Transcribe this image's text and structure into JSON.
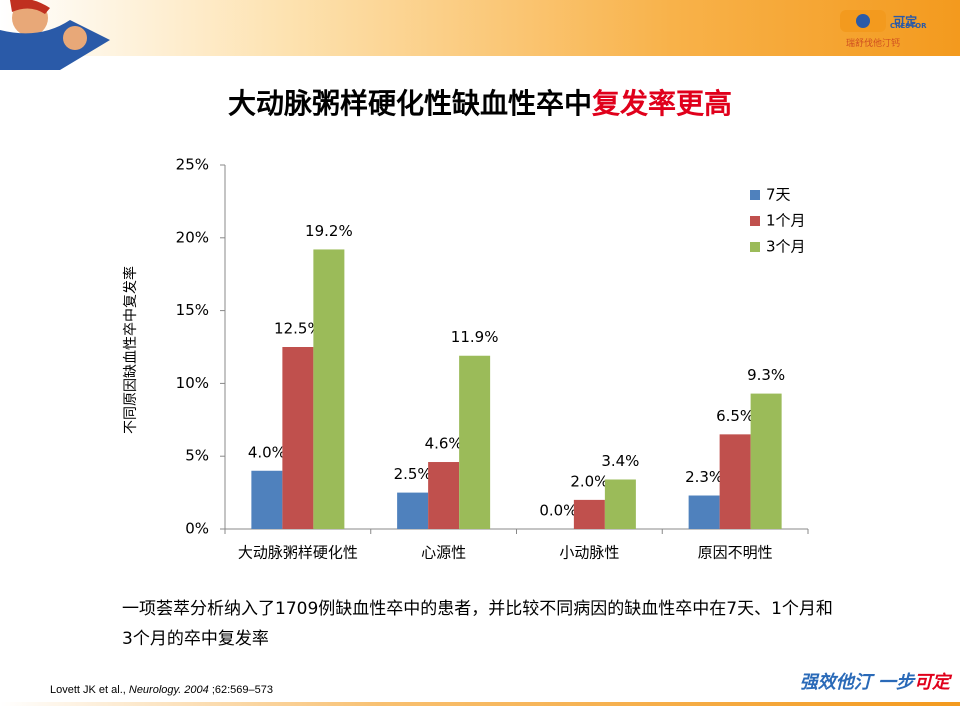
{
  "title_parts": [
    "大动脉粥样硬化性缺血性卒中",
    "复发率更高"
  ],
  "logo": {
    "brand": "可定",
    "brand_en": "CRESTOR",
    "slogan": "瑞舒伐他汀钙"
  },
  "chart_data": {
    "type": "bar",
    "y_axis_label": "不同原因缺血性卒中复发率",
    "categories": [
      "大动脉粥样硬化性",
      "心源性",
      "小动脉性",
      "原因不明性"
    ],
    "series": [
      {
        "name": "7天",
        "color": "#4f81bd",
        "values": [
          4.0,
          2.5,
          0.0,
          2.3
        ],
        "value_labels": [
          "4.0%",
          "2.5%",
          "0.0%",
          "2.3%"
        ]
      },
      {
        "name": "1个月",
        "color": "#c0504d",
        "values": [
          12.5,
          4.6,
          2.0,
          6.5
        ],
        "value_labels": [
          "12.5%",
          "4.6%",
          "2.0%",
          "6.5%"
        ]
      },
      {
        "name": "3个月",
        "color": "#9bbb59",
        "values": [
          19.2,
          11.9,
          3.4,
          9.3
        ],
        "value_labels": [
          "19.2%",
          "11.9%",
          "3.4%",
          "9.3%"
        ]
      }
    ],
    "ylim": [
      0,
      25
    ],
    "yticks": [
      {
        "value": 0,
        "label": "0%"
      },
      {
        "value": 5,
        "label": "5%"
      },
      {
        "value": 10,
        "label": "10%"
      },
      {
        "value": 15,
        "label": "15%"
      },
      {
        "value": 20,
        "label": "20%"
      },
      {
        "value": 25,
        "label": "25%"
      }
    ],
    "legend": "upper right"
  },
  "body_text": "一项荟萃分析纳入了1709例缺血性卒中的患者，并比较不同病因的缺血性卒中在7天、1个月和3个月的卒中复发率",
  "citation": [
    "Lovett JK et al., ",
    "Neurology. 2004",
    " ;62:569–573"
  ],
  "footer_slogan": [
    "强效他汀  一步",
    "可定"
  ]
}
